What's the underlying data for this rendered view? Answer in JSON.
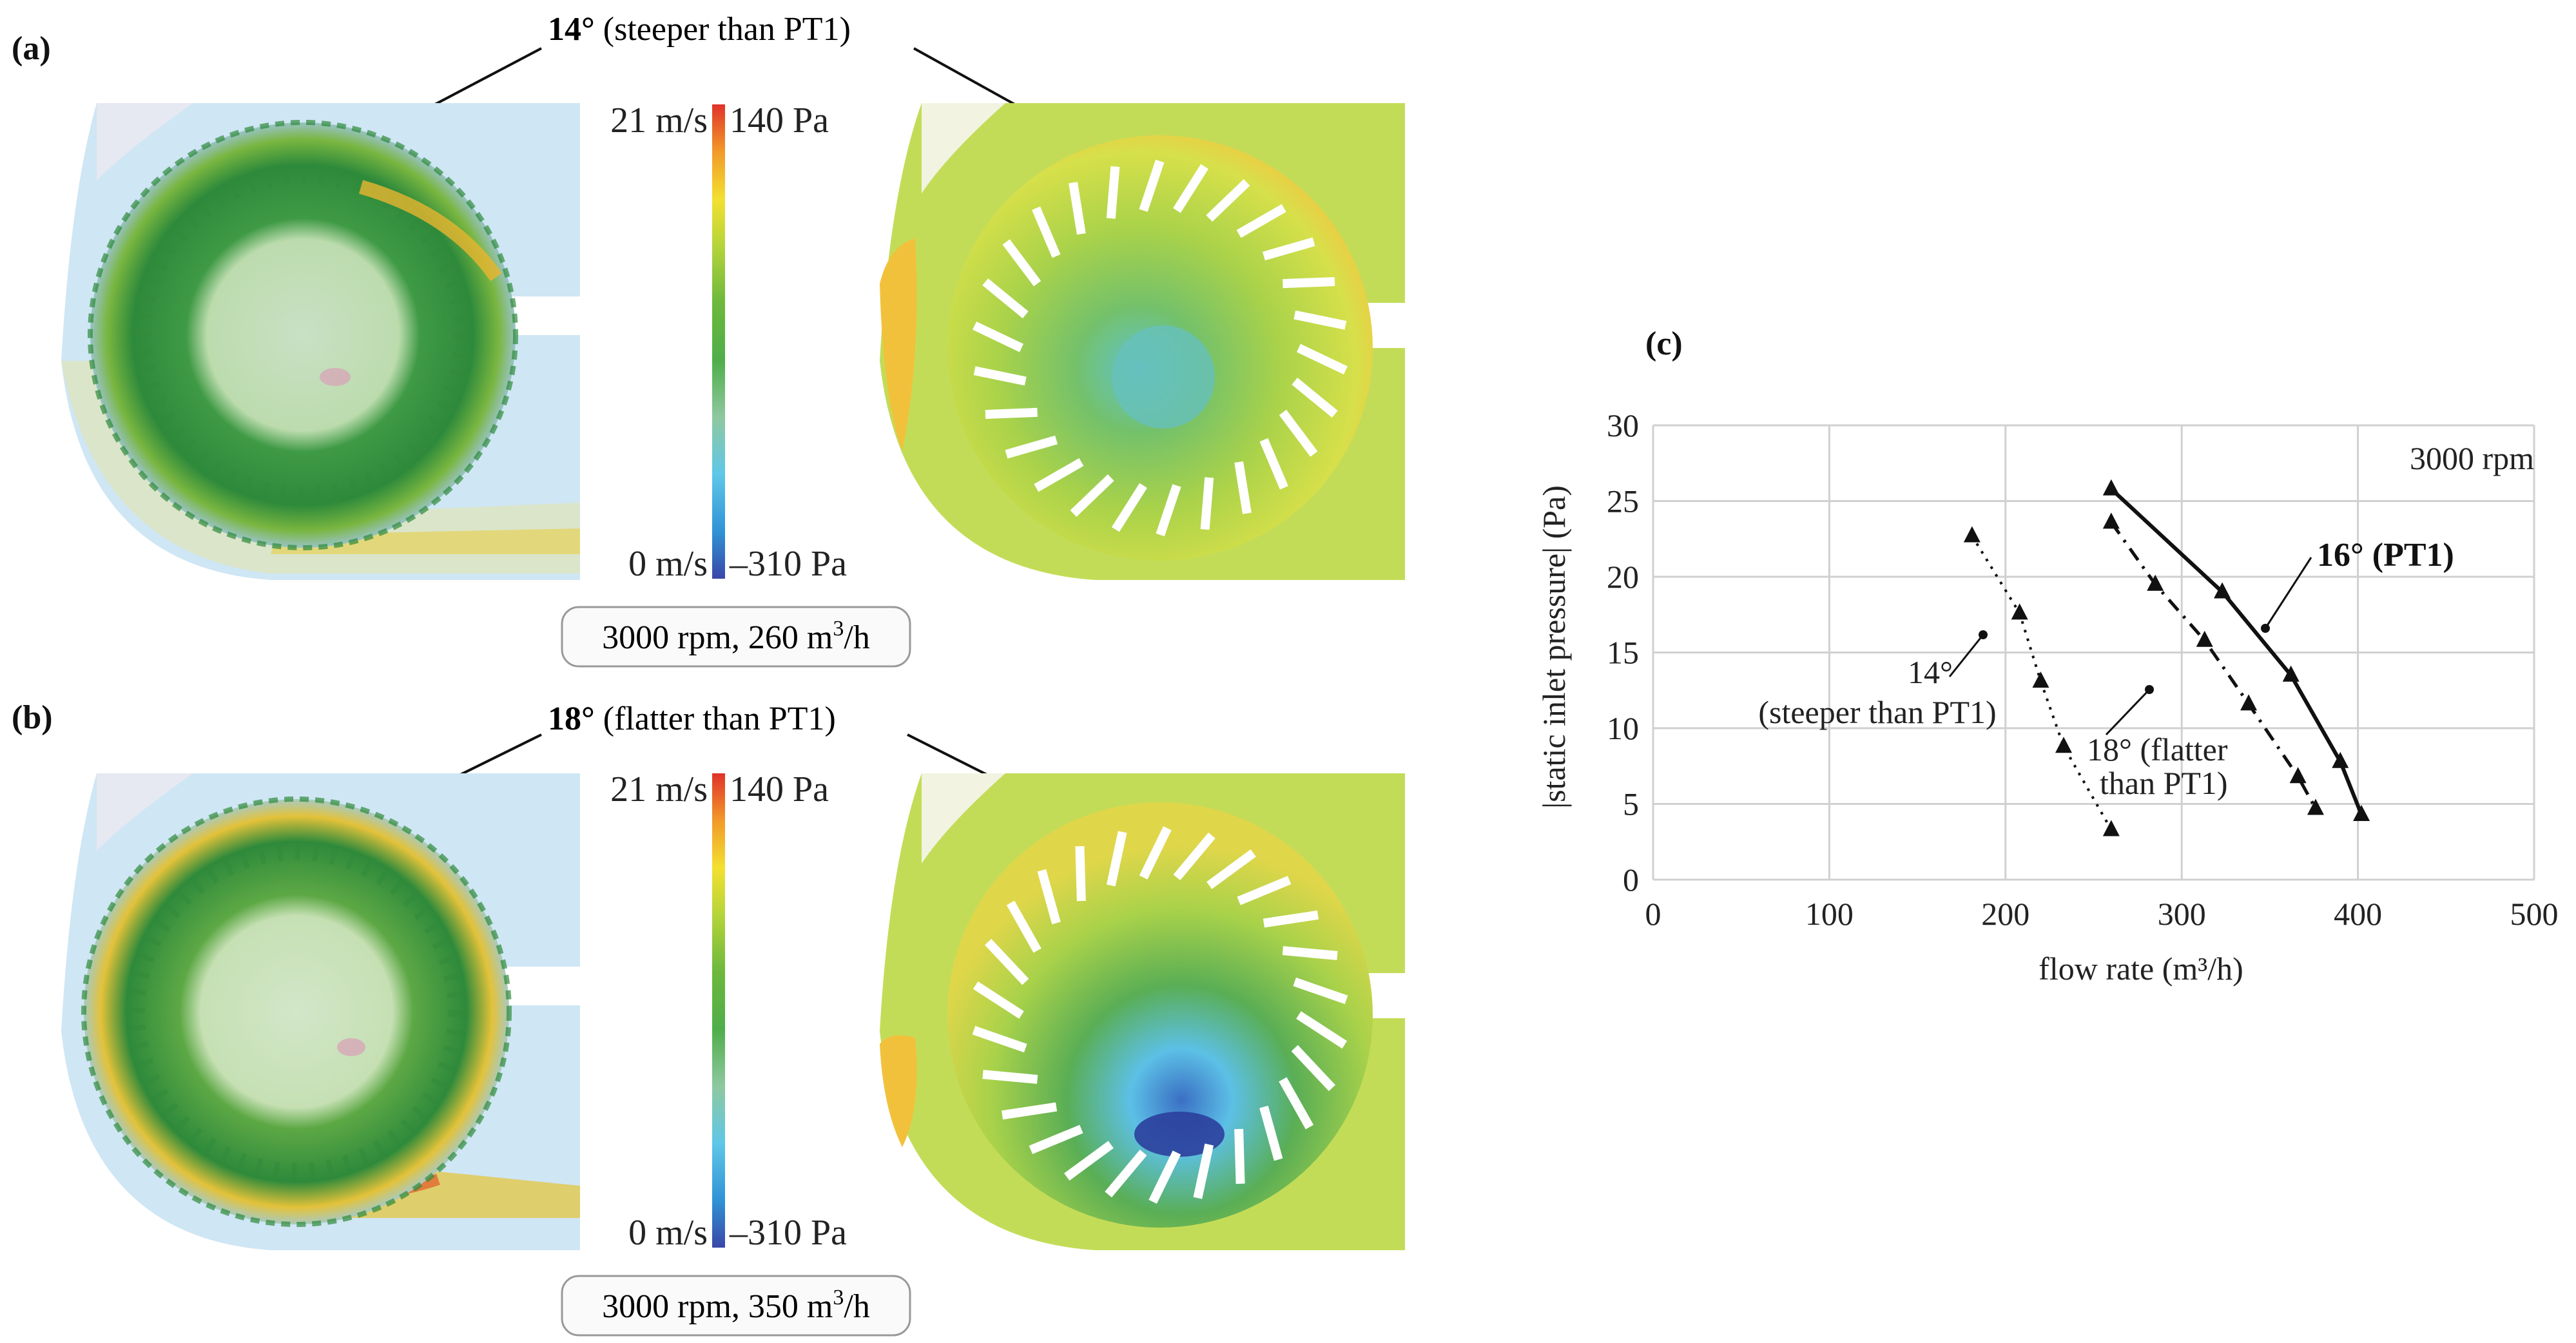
{
  "panel_a": {
    "label": "(a)",
    "title_bold": "14°",
    "title_rest": " (steeper than PT1)",
    "velocity_max": "21 m/s",
    "velocity_min": "0 m/s",
    "pressure_max": "140 Pa",
    "pressure_min": "–310 Pa",
    "condition_prefix": "3000 rpm, 260 m",
    "condition_sup": "3",
    "condition_suffix": "/h"
  },
  "panel_b": {
    "label": "(b)",
    "title_bold": "18°",
    "title_rest": " (flatter than PT1)",
    "velocity_max": "21 m/s",
    "velocity_min": "0 m/s",
    "pressure_max": "140 Pa",
    "pressure_min": "–310 Pa",
    "condition_prefix": "3000 rpm, 350 m",
    "condition_sup": "3",
    "condition_suffix": "/h"
  },
  "colors": {
    "colorbar": [
      "#3a47a8",
      "#2f93d6",
      "#5fc7e8",
      "#8ec8a0",
      "#4fae4a",
      "#7dbf3a",
      "#d9e23a",
      "#f6d52a",
      "#f29a2a",
      "#e0322a"
    ],
    "fluid_bg": "#c9e4f2",
    "pressure_bg": "#c7de55"
  },
  "chart_data": {
    "type": "line",
    "panel_label": "(c)",
    "annotation": "3000 rpm",
    "xlabel": "flow rate (m³/h)",
    "ylabel": "|static inlet pressure| (Pa)",
    "xlim": [
      0,
      500
    ],
    "ylim": [
      0,
      30
    ],
    "xticks": [
      0,
      100,
      200,
      300,
      400,
      500
    ],
    "yticks": [
      0,
      5,
      10,
      15,
      20,
      25,
      30
    ],
    "grid": true,
    "series": [
      {
        "name": "16° (PT1)",
        "style": "solid",
        "x": [
          260,
          323,
          362,
          390,
          402
        ],
        "y": [
          25.8,
          19.0,
          13.5,
          7.8,
          4.3
        ]
      },
      {
        "name": "18° (flatter than PT1)",
        "style": "dashed",
        "x": [
          260,
          285,
          313,
          338,
          366,
          376
        ],
        "y": [
          23.6,
          19.5,
          15.8,
          11.6,
          6.8,
          4.7
        ]
      },
      {
        "name": "14° (steeper than PT1)",
        "style": "dotted",
        "x": [
          181,
          208,
          220,
          233,
          260
        ],
        "y": [
          22.7,
          17.6,
          13.1,
          8.8,
          3.3
        ]
      }
    ],
    "labels": {
      "pt1": "16° (PT1)",
      "flat_line1": "18° (flatter",
      "flat_line2": "than PT1)",
      "steep_line1": "14°",
      "steep_line2": "(steeper than PT1)"
    }
  }
}
